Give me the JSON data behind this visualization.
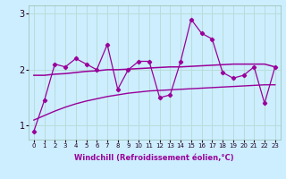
{
  "xlabel": "Windchill (Refroidissement éolien,°C)",
  "background_color": "#cceeff",
  "grid_color": "#b8ddd8",
  "line_color": "#990099",
  "x": [
    0,
    1,
    2,
    3,
    4,
    5,
    6,
    7,
    8,
    9,
    10,
    11,
    12,
    13,
    14,
    15,
    16,
    17,
    18,
    19,
    20,
    21,
    22,
    23
  ],
  "y_jagged": [
    0.9,
    1.45,
    2.1,
    2.05,
    2.2,
    2.1,
    2.0,
    2.45,
    1.65,
    2.0,
    2.15,
    2.15,
    1.5,
    1.55,
    2.15,
    2.9,
    2.65,
    2.55,
    1.95,
    1.85,
    1.9,
    2.05,
    1.4,
    2.05
  ],
  "y_smooth1": [
    1.9,
    1.9,
    1.92,
    1.93,
    1.95,
    1.97,
    1.98,
    2.0,
    2.0,
    2.01,
    2.02,
    2.03,
    2.04,
    2.05,
    2.05,
    2.06,
    2.07,
    2.08,
    2.09,
    2.1,
    2.1,
    2.1,
    2.1,
    2.05
  ],
  "y_smooth2": [
    1.1,
    1.18,
    1.26,
    1.33,
    1.39,
    1.44,
    1.48,
    1.52,
    1.55,
    1.58,
    1.6,
    1.62,
    1.63,
    1.64,
    1.65,
    1.66,
    1.67,
    1.68,
    1.69,
    1.7,
    1.71,
    1.72,
    1.73,
    1.73
  ],
  "ylim": [
    0.75,
    3.15
  ],
  "yticks": [
    1,
    2,
    3
  ],
  "xlim": [
    -0.5,
    23.5
  ]
}
